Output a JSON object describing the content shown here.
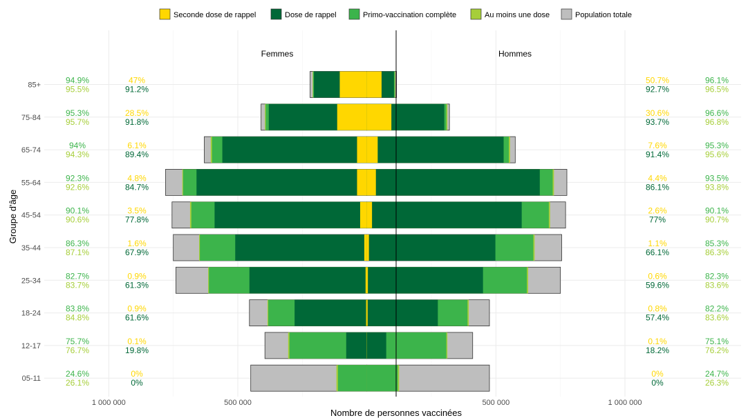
{
  "chart_data": {
    "type": "bar",
    "subtype": "population-pyramid",
    "title": "",
    "xlabel": "Nombre de personnes vaccinées",
    "ylabel": "Groupe d'âge",
    "xlim": [
      -1250000,
      1450000
    ],
    "x_ticks": [
      {
        "value": -1000000,
        "label": "1 000 000"
      },
      {
        "value": -500000,
        "label": "500 000"
      },
      {
        "value": 500000,
        "label": "500 000"
      },
      {
        "value": 1000000,
        "label": "1 000 000"
      }
    ],
    "panel_labels": {
      "left": "Femmes",
      "right": "Hommes"
    },
    "legend_position": "top",
    "legend": [
      {
        "key": "seconde",
        "label": "Seconde dose de rappel",
        "color": "#FFD700"
      },
      {
        "key": "rappel",
        "label": "Dose de rappel",
        "color": "#006837"
      },
      {
        "key": "primo",
        "label": "Primo-vaccination complète",
        "color": "#3CB44B"
      },
      {
        "key": "une",
        "label": "Au moins une dose",
        "color": "#A6CE39"
      },
      {
        "key": "pop",
        "label": "Population totale",
        "color": "#BEBEBE"
      }
    ],
    "categories": [
      "85+",
      "75-84",
      "65-74",
      "55-64",
      "45-54",
      "35-44",
      "25-34",
      "18-24",
      "12-17",
      "05-11"
    ],
    "femmes": {
      "pop": [
        220000,
        410000,
        630000,
        780000,
        755000,
        750000,
        740000,
        455000,
        395000,
        450000
      ],
      "une": [
        210000,
        395000,
        605000,
        715000,
        685000,
        650000,
        615000,
        385000,
        305000,
        118000
      ],
      "primo": [
        208000,
        392000,
        600000,
        712000,
        680000,
        647000,
        612000,
        382000,
        300000,
        112000
      ],
      "rappel": [
        205000,
        380000,
        560000,
        660000,
        590000,
        510000,
        455000,
        280000,
        80000,
        0
      ],
      "seconde": [
        105000,
        115000,
        38000,
        38000,
        26000,
        10000,
        5000,
        3000,
        500,
        0
      ]
    },
    "hommes": {
      "pop": [
        115000,
        320000,
        575000,
        775000,
        770000,
        755000,
        750000,
        475000,
        410000,
        475000
      ],
      "une": [
        110000,
        312000,
        555000,
        725000,
        710000,
        650000,
        625000,
        395000,
        312000,
        125000
      ],
      "primo": [
        108000,
        308000,
        550000,
        720000,
        705000,
        645000,
        620000,
        390000,
        308000,
        120000
      ],
      "rappel": [
        105000,
        300000,
        530000,
        670000,
        600000,
        498000,
        450000,
        275000,
        75000,
        0
      ],
      "seconde": [
        57000,
        95000,
        42000,
        35000,
        20000,
        8000,
        4000,
        3000,
        400,
        0
      ]
    },
    "annotations": {
      "left_outer": [
        [
          "94.9%",
          "95.5%"
        ],
        [
          "95.3%",
          "95.7%"
        ],
        [
          "94%",
          "94.3%"
        ],
        [
          "92.3%",
          "92.6%"
        ],
        [
          "90.1%",
          "90.6%"
        ],
        [
          "86.3%",
          "87.1%"
        ],
        [
          "82.7%",
          "83.7%"
        ],
        [
          "83.8%",
          "84.8%"
        ],
        [
          "75.7%",
          "76.7%"
        ],
        [
          "24.6%",
          "26.1%"
        ]
      ],
      "left_inner": [
        [
          "47%",
          "91.2%"
        ],
        [
          "28.5%",
          "91.8%"
        ],
        [
          "6.1%",
          "89.4%"
        ],
        [
          "4.8%",
          "84.7%"
        ],
        [
          "3.5%",
          "77.8%"
        ],
        [
          "1.6%",
          "67.9%"
        ],
        [
          "0.9%",
          "61.3%"
        ],
        [
          "0.9%",
          "61.6%"
        ],
        [
          "0.1%",
          "19.8%"
        ],
        [
          "0%",
          "0%"
        ]
      ],
      "right_inner": [
        [
          "50.7%",
          "92.7%"
        ],
        [
          "30.6%",
          "93.7%"
        ],
        [
          "7.6%",
          "91.4%"
        ],
        [
          "4.4%",
          "86.1%"
        ],
        [
          "2.6%",
          "77%"
        ],
        [
          "1.1%",
          "66.1%"
        ],
        [
          "0.6%",
          "59.6%"
        ],
        [
          "0.8%",
          "57.4%"
        ],
        [
          "0.1%",
          "18.2%"
        ],
        [
          "0%",
          "0%"
        ]
      ],
      "right_outer": [
        [
          "96.1%",
          "96.5%"
        ],
        [
          "96.6%",
          "96.8%"
        ],
        [
          "95.3%",
          "95.6%"
        ],
        [
          "93.5%",
          "93.8%"
        ],
        [
          "90.1%",
          "90.7%"
        ],
        [
          "85.3%",
          "86.3%"
        ],
        [
          "82.3%",
          "83.6%"
        ],
        [
          "82.2%",
          "83.6%"
        ],
        [
          "75.1%",
          "76.2%"
        ],
        [
          "24.7%",
          "26.3%"
        ]
      ],
      "inner_colors": [
        "#FFD700",
        "#006837"
      ],
      "outer_colors": [
        "#3CB44B",
        "#A6CE39"
      ]
    }
  }
}
